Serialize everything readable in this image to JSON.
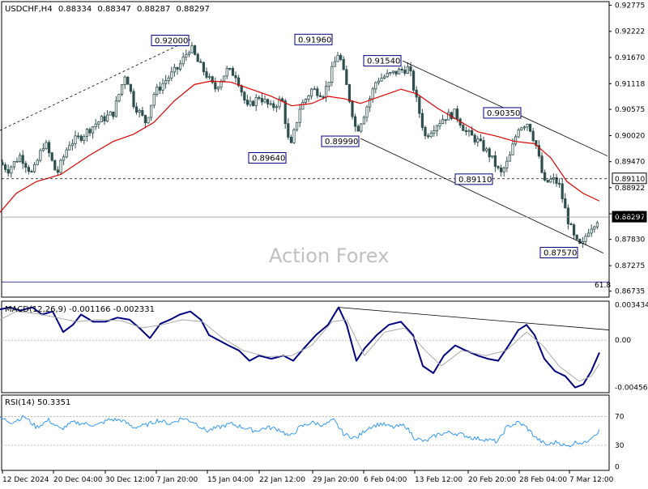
{
  "symbol_line": {
    "symbol": "USDCHF,H4",
    "open": "0.88334",
    "high": "0.88347",
    "low": "0.88287",
    "close": "0.88297"
  },
  "watermark": "Action Forex",
  "colors": {
    "candle": "#2f4f4f",
    "ma": "#e00000",
    "channel": "#000000",
    "macd_main": "#000080",
    "macd_signal": "#a9a9a9",
    "rsi": "#1e90ff",
    "label_border": "#000080"
  },
  "chart_data": [
    {
      "type": "candlestick",
      "title": "USDCHF,H4",
      "ylim": [
        0.8661,
        0.9285
      ],
      "y_ticks": [
        "0.92775",
        "0.92222",
        "0.91670",
        "0.91118",
        "0.90575",
        "0.90020",
        "0.89470",
        "0.88922",
        "0.88370",
        "0.87830",
        "0.87275",
        "0.86735"
      ],
      "x_ticks": [
        "12 Dec 2024",
        "20 Dec 04:00",
        "30 Dec 12:00",
        "7 Jan 20:00",
        "15 Jan 04:00",
        "22 Jan 12:00",
        "29 Jan 20:00",
        "6 Feb 04:00",
        "13 Feb 12:00",
        "20 Feb 20:00",
        "28 Feb 04:00",
        "7 Mar 12:00"
      ],
      "price_path": [
        [
          0,
          0.8945
        ],
        [
          10,
          0.893
        ],
        [
          25,
          0.896
        ],
        [
          40,
          0.892
        ],
        [
          55,
          0.899
        ],
        [
          70,
          0.892
        ],
        [
          85,
          0.8985
        ],
        [
          100,
          0.9
        ],
        [
          120,
          0.903
        ],
        [
          140,
          0.905
        ],
        [
          155,
          0.9135
        ],
        [
          165,
          0.907
        ],
        [
          180,
          0.903
        ],
        [
          190,
          0.909
        ],
        [
          205,
          0.912
        ],
        [
          220,
          0.9145
        ],
        [
          235,
          0.919
        ],
        [
          245,
          0.9155
        ],
        [
          255,
          0.913
        ],
        [
          265,
          0.91
        ],
        [
          280,
          0.914
        ],
        [
          292,
          0.913
        ],
        [
          305,
          0.906
        ],
        [
          320,
          0.9085
        ],
        [
          335,
          0.906
        ],
        [
          348,
          0.908
        ],
        [
          358,
          0.897
        ],
        [
          370,
          0.906
        ],
        [
          385,
          0.91
        ],
        [
          400,
          0.909
        ],
        [
          410,
          0.914
        ],
        [
          418,
          0.918
        ],
        [
          430,
          0.909
        ],
        [
          440,
          0.901
        ],
        [
          450,
          0.905
        ],
        [
          465,
          0.912
        ],
        [
          480,
          0.913
        ],
        [
          495,
          0.914
        ],
        [
          505,
          0.9145
        ],
        [
          515,
          0.907
        ],
        [
          525,
          0.9
        ],
        [
          535,
          0.902
        ],
        [
          548,
          0.904
        ],
        [
          562,
          0.905
        ],
        [
          575,
          0.901
        ],
        [
          590,
          0.899
        ],
        [
          605,
          0.896
        ],
        [
          618,
          0.892
        ],
        [
          628,
          0.895
        ],
        [
          640,
          0.902
        ],
        [
          652,
          0.903
        ],
        [
          662,
          0.898
        ],
        [
          672,
          0.89
        ],
        [
          682,
          0.891
        ],
        [
          690,
          0.89
        ],
        [
          700,
          0.883
        ],
        [
          710,
          0.878
        ],
        [
          718,
          0.8765
        ],
        [
          725,
          0.88
        ],
        [
          732,
          0.8815
        ],
        [
          740,
          0.883
        ]
      ],
      "moving_average": {
        "color": "#e00000",
        "points": [
          [
            0,
            0.884
          ],
          [
            20,
            0.888
          ],
          [
            45,
            0.8905
          ],
          [
            75,
            0.892
          ],
          [
            110,
            0.896
          ],
          [
            140,
            0.899
          ],
          [
            165,
            0.9005
          ],
          [
            190,
            0.903
          ],
          [
            215,
            0.9075
          ],
          [
            240,
            0.911
          ],
          [
            260,
            0.9117
          ],
          [
            285,
            0.9115
          ],
          [
            310,
            0.91
          ],
          [
            335,
            0.9085
          ],
          [
            360,
            0.9065
          ],
          [
            385,
            0.907
          ],
          [
            405,
            0.9085
          ],
          [
            425,
            0.908
          ],
          [
            445,
            0.907
          ],
          [
            470,
            0.9085
          ],
          [
            495,
            0.91
          ],
          [
            515,
            0.909
          ],
          [
            540,
            0.906
          ],
          [
            565,
            0.9035
          ],
          [
            590,
            0.901
          ],
          [
            615,
            0.9
          ],
          [
            635,
            0.899
          ],
          [
            660,
            0.8985
          ],
          [
            680,
            0.8955
          ],
          [
            700,
            0.8905
          ],
          [
            720,
            0.888
          ],
          [
            740,
            0.8864
          ]
        ]
      },
      "annotations": [
        {
          "text": "0.92000",
          "x": 235,
          "price": 0.9203,
          "anchor": "right"
        },
        {
          "text": "0.91960",
          "x": 412,
          "price": 0.9205,
          "anchor": "right"
        },
        {
          "text": "0.91540",
          "x": 497,
          "price": 0.916,
          "anchor": "right"
        },
        {
          "text": "0.90350",
          "x": 645,
          "price": 0.905,
          "anchor": "right"
        },
        {
          "text": "0.89640",
          "x": 355,
          "price": 0.8955,
          "anchor": "right"
        },
        {
          "text": "0.89990",
          "x": 445,
          "price": 0.899,
          "anchor": "right"
        },
        {
          "text": "0.89110",
          "x": 610,
          "price": 0.891,
          "anchor": "right"
        },
        {
          "text": "0.87570",
          "x": 715,
          "price": 0.8755,
          "anchor": "right"
        }
      ],
      "horizontal_lines": [
        {
          "price": 0.8911,
          "style": "dashed",
          "label": "0.89110",
          "tag": "axis"
        },
        {
          "price": 0.883,
          "style": "solid-gray",
          "label": "0.88297",
          "tag": "price"
        }
      ],
      "fib_label": "61.8",
      "trendlines": [
        {
          "from": [
            0,
            0.9013
          ],
          "to": [
            235,
            0.9205
          ],
          "style": "dashed"
        },
        {
          "from": [
            497,
            0.916
          ],
          "to": [
            750,
            0.8959
          ],
          "style": "solid"
        },
        {
          "from": [
            445,
            0.8996
          ],
          "to": [
            745,
            0.8754
          ],
          "style": "solid"
        }
      ]
    },
    {
      "type": "line",
      "title": "MACD(12,26,9) -0.001166 -0.002331",
      "ylim": [
        -0.0051,
        0.0038
      ],
      "y_ticks": [
        "0.003434",
        "0.00",
        "-0.004569"
      ],
      "zero_line": 0.0,
      "series": [
        {
          "name": "MACD(12,26,9) -0.001166",
          "color": "#000080",
          "points": [
            [
              0,
              0.003
            ],
            [
              12,
              0.0032
            ],
            [
              25,
              0.0029
            ],
            [
              40,
              0.0032
            ],
            [
              52,
              0.0025
            ],
            [
              65,
              0.0028
            ],
            [
              78,
              0.0008
            ],
            [
              90,
              0.0015
            ],
            [
              100,
              0.0025
            ],
            [
              115,
              0.0018
            ],
            [
              130,
              0.0018
            ],
            [
              145,
              0.0022
            ],
            [
              160,
              0.002
            ],
            [
              172,
              0.0012
            ],
            [
              185,
              0.0002
            ],
            [
              198,
              0.0016
            ],
            [
              210,
              0.002
            ],
            [
              222,
              0.0025
            ],
            [
              235,
              0.0028
            ],
            [
              248,
              0.002
            ],
            [
              258,
              0.0005
            ],
            [
              270,
              0.0
            ],
            [
              282,
              -0.0005
            ],
            [
              295,
              -0.001
            ],
            [
              308,
              -0.002
            ],
            [
              320,
              -0.0015
            ],
            [
              335,
              -0.0018
            ],
            [
              350,
              -0.0015
            ],
            [
              362,
              -0.002
            ],
            [
              375,
              -0.0008
            ],
            [
              390,
              0.0005
            ],
            [
              405,
              0.0015
            ],
            [
              418,
              0.0032
            ],
            [
              428,
              0.0015
            ],
            [
              440,
              -0.002
            ],
            [
              450,
              -0.0008
            ],
            [
              465,
              0.0005
            ],
            [
              480,
              0.0015
            ],
            [
              495,
              0.0018
            ],
            [
              510,
              0.0005
            ],
            [
              522,
              -0.0025
            ],
            [
              535,
              -0.0032
            ],
            [
              548,
              -0.0015
            ],
            [
              562,
              -0.0005
            ],
            [
              575,
              -0.001
            ],
            [
              590,
              -0.0015
            ],
            [
              602,
              -0.0018
            ],
            [
              615,
              -0.002
            ],
            [
              628,
              -0.0005
            ],
            [
              640,
              0.001
            ],
            [
              650,
              0.0015
            ],
            [
              660,
              0.0005
            ],
            [
              672,
              -0.0018
            ],
            [
              685,
              -0.003
            ],
            [
              698,
              -0.0035
            ],
            [
              710,
              -0.0046
            ],
            [
              720,
              -0.0043
            ],
            [
              730,
              -0.003
            ],
            [
              740,
              -0.0012
            ]
          ]
        },
        {
          "name": "Signal -0.002331",
          "color": "#a9a9a9",
          "points": [
            [
              0,
              0.002
            ],
            [
              20,
              0.0028
            ],
            [
              45,
              0.0026
            ],
            [
              70,
              0.0022
            ],
            [
              95,
              0.0018
            ],
            [
              120,
              0.002
            ],
            [
              150,
              0.0019
            ],
            [
              175,
              0.0012
            ],
            [
              200,
              0.0015
            ],
            [
              225,
              0.002
            ],
            [
              250,
              0.0018
            ],
            [
              275,
              0.0002
            ],
            [
              300,
              -0.001
            ],
            [
              330,
              -0.0016
            ],
            [
              360,
              -0.0015
            ],
            [
              385,
              -0.0005
            ],
            [
              410,
              0.0018
            ],
            [
              428,
              0.002
            ],
            [
              450,
              -0.0015
            ],
            [
              475,
              0.0008
            ],
            [
              500,
              0.0012
            ],
            [
              525,
              -0.001
            ],
            [
              545,
              -0.0025
            ],
            [
              570,
              -0.001
            ],
            [
              600,
              -0.0015
            ],
            [
              625,
              -0.001
            ],
            [
              650,
              0.0008
            ],
            [
              670,
              -0.0005
            ],
            [
              690,
              -0.0025
            ],
            [
              715,
              -0.004
            ],
            [
              730,
              -0.0035
            ],
            [
              740,
              -0.0023
            ]
          ]
        }
      ],
      "trendline": {
        "from": [
          418,
          0.0032
        ],
        "to": [
          752,
          0.001
        ]
      }
    },
    {
      "type": "line",
      "title": "RSI(14) 50.3351",
      "ylim": [
        -5,
        100
      ],
      "y_ticks": [
        "70",
        "30",
        "0"
      ],
      "levels": [
        70,
        30
      ],
      "series": [
        {
          "name": "RSI(14) 50.3351",
          "color": "#1e90ff",
          "points": [
            [
              0,
              68
            ],
            [
              15,
              62
            ],
            [
              30,
              70
            ],
            [
              45,
              55
            ],
            [
              60,
              65
            ],
            [
              75,
              52
            ],
            [
              90,
              62
            ],
            [
              105,
              60
            ],
            [
              120,
              58
            ],
            [
              135,
              66
            ],
            [
              150,
              65
            ],
            [
              165,
              55
            ],
            [
              180,
              58
            ],
            [
              195,
              65
            ],
            [
              210,
              60
            ],
            [
              225,
              68
            ],
            [
              240,
              62
            ],
            [
              255,
              50
            ],
            [
              270,
              55
            ],
            [
              285,
              60
            ],
            [
              300,
              55
            ],
            [
              315,
              50
            ],
            [
              330,
              55
            ],
            [
              345,
              52
            ],
            [
              358,
              42
            ],
            [
              370,
              55
            ],
            [
              385,
              62
            ],
            [
              400,
              58
            ],
            [
              412,
              65
            ],
            [
              425,
              45
            ],
            [
              440,
              40
            ],
            [
              455,
              55
            ],
            [
              470,
              60
            ],
            [
              485,
              55
            ],
            [
              500,
              58
            ],
            [
              512,
              40
            ],
            [
              525,
              35
            ],
            [
              540,
              45
            ],
            [
              555,
              48
            ],
            [
              570,
              45
            ],
            [
              585,
              40
            ],
            [
              600,
              38
            ],
            [
              615,
              35
            ],
            [
              625,
              55
            ],
            [
              640,
              62
            ],
            [
              650,
              55
            ],
            [
              662,
              40
            ],
            [
              675,
              30
            ],
            [
              688,
              35
            ],
            [
              700,
              28
            ],
            [
              712,
              35
            ],
            [
              722,
              33
            ],
            [
              730,
              42
            ],
            [
              740,
              50
            ]
          ]
        }
      ]
    }
  ]
}
